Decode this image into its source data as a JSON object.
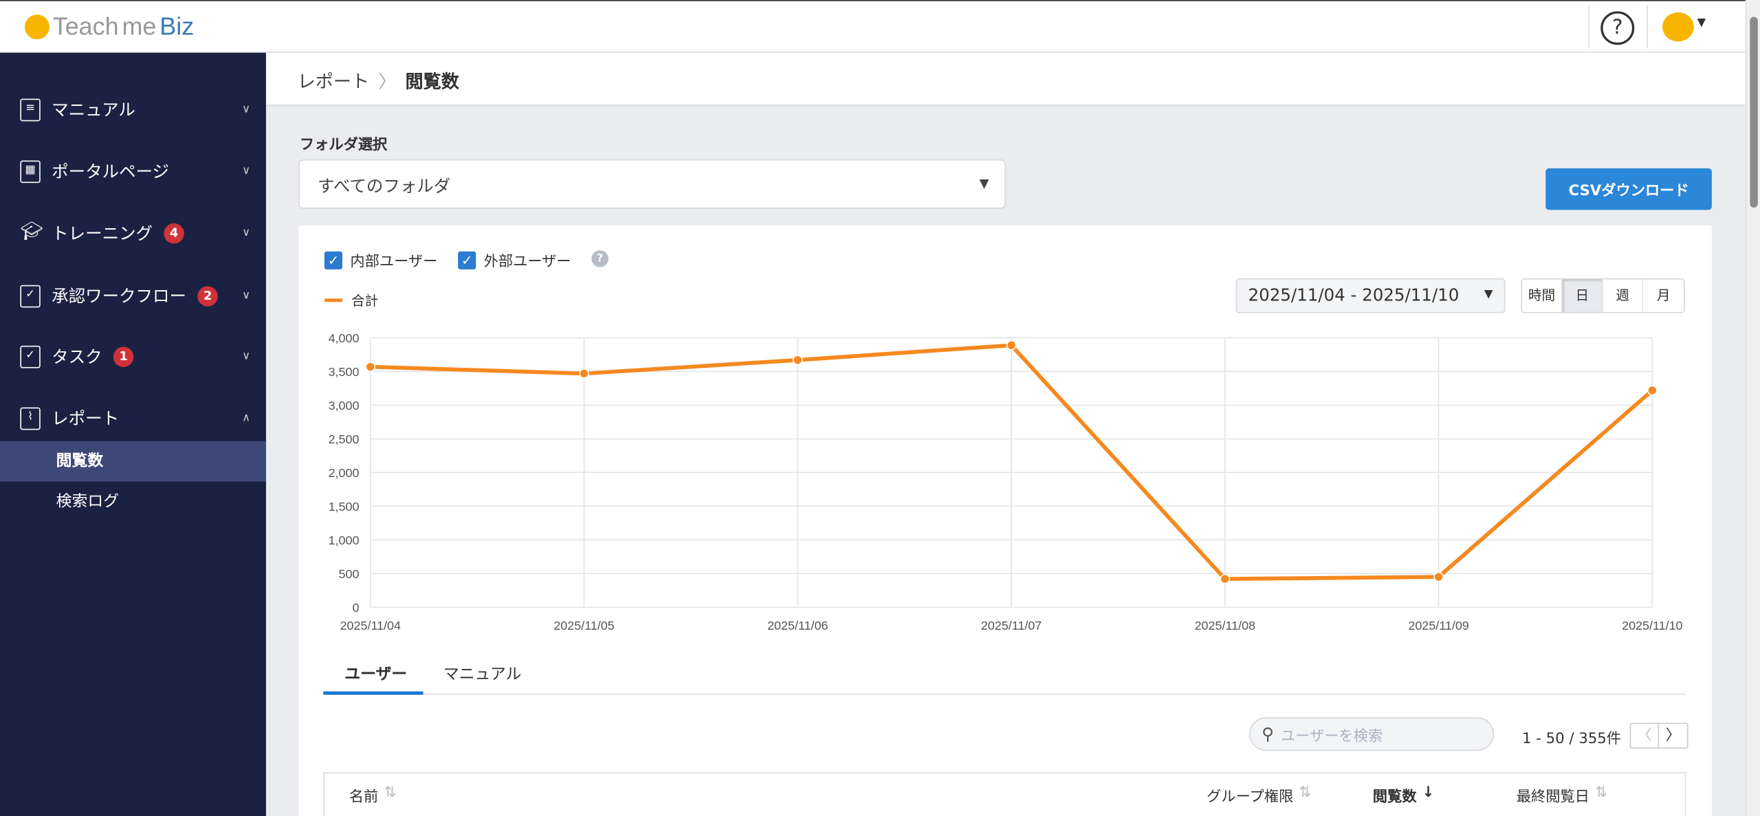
{
  "header": {
    "logo_text": "Teach",
    "logo_text2": "me",
    "logo_brand": "Biz",
    "help_label": "?"
  },
  "sidebar": {
    "items": [
      {
        "label": "マニュアル",
        "icon": "notebook-icon"
      },
      {
        "label": "ポータルページ",
        "icon": "building-icon"
      },
      {
        "label": "トレーニング",
        "icon": "graduation-cap-icon",
        "badge": "4"
      },
      {
        "label": "承認ワークフロー",
        "icon": "clipboard-check-icon",
        "badge": "2"
      },
      {
        "label": "タスク",
        "icon": "calendar-check-icon",
        "badge": "1"
      },
      {
        "label": "レポート",
        "icon": "activity-chart-icon"
      }
    ],
    "subitems": [
      {
        "label": "閲覧数",
        "active": true
      },
      {
        "label": "検索ログ"
      }
    ]
  },
  "breadcrumb": {
    "parent": "レポート",
    "separator": "〉",
    "current": "閲覧数"
  },
  "folder": {
    "label": "フォルダ選択",
    "value": "すべてのフォルダ"
  },
  "csv_button": "CSVダウンロード",
  "filters": {
    "internal": "内部ユーザー",
    "external": "外部ユーザー",
    "help": "?"
  },
  "date_range": "2025/11/04 - 2025/11/10",
  "granularity": {
    "options": [
      "時間",
      "日",
      "週",
      "月"
    ],
    "selected": "日"
  },
  "colors": {
    "series": "#f5891f",
    "accent": "#2b87d8",
    "sidebar": "#1b2142"
  },
  "chart_data": {
    "type": "line",
    "legend": "合計",
    "categories": [
      "2025/11/04",
      "2025/11/05",
      "2025/11/06",
      "2025/11/07",
      "2025/11/08",
      "2025/11/09",
      "2025/11/10"
    ],
    "series": [
      {
        "name": "合計",
        "values": [
          3570,
          3470,
          3670,
          3890,
          420,
          450,
          3220
        ]
      }
    ],
    "ylim": [
      0,
      4000
    ],
    "yticks": [
      "0",
      "500",
      "1,000",
      "1,500",
      "2,000",
      "2,500",
      "3,000",
      "3,500",
      "4,000"
    ],
    "grid": true
  },
  "tabs": [
    "ユーザー",
    "マニュアル"
  ],
  "search_placeholder": "ユーザーを検索",
  "pager": "1 - 50 / 355件",
  "table": {
    "headers": [
      "名前",
      "グループ権限",
      "閲覧数",
      "最終閲覧日"
    ],
    "sorted": "閲覧数"
  }
}
